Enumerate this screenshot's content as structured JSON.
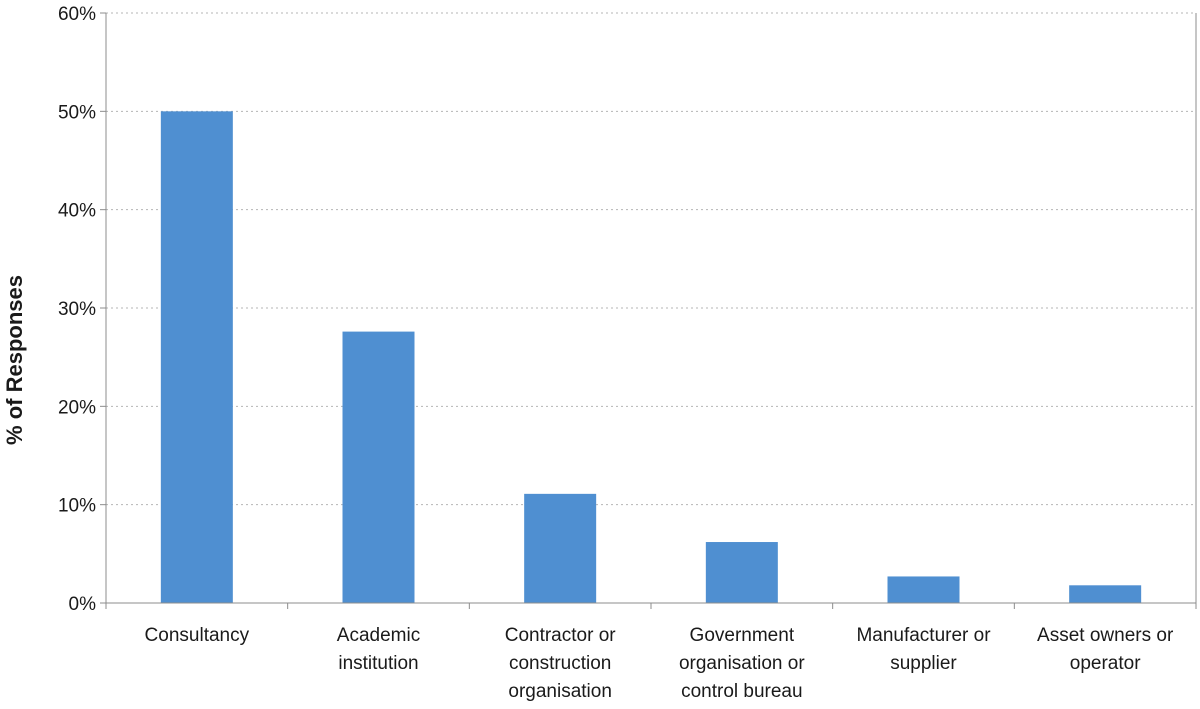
{
  "chart_data": {
    "type": "bar",
    "title": "",
    "xlabel": "",
    "ylabel": "% of Responses",
    "ylim": [
      0,
      60
    ],
    "yticks": [
      "0%",
      "10%",
      "20%",
      "30%",
      "40%",
      "50%",
      "60%"
    ],
    "grid": true,
    "categories": [
      [
        "Consultancy"
      ],
      [
        "Academic",
        "institution"
      ],
      [
        "Contractor or",
        "construction",
        "organisation"
      ],
      [
        "Government",
        "organisation or",
        "control bureau"
      ],
      [
        "Manufacturer or",
        "supplier"
      ],
      [
        "Asset owners or",
        "operator"
      ]
    ],
    "values": [
      50,
      27.6,
      11.1,
      6.2,
      2.7,
      1.8
    ],
    "bar_color": "#4f8fd1"
  }
}
